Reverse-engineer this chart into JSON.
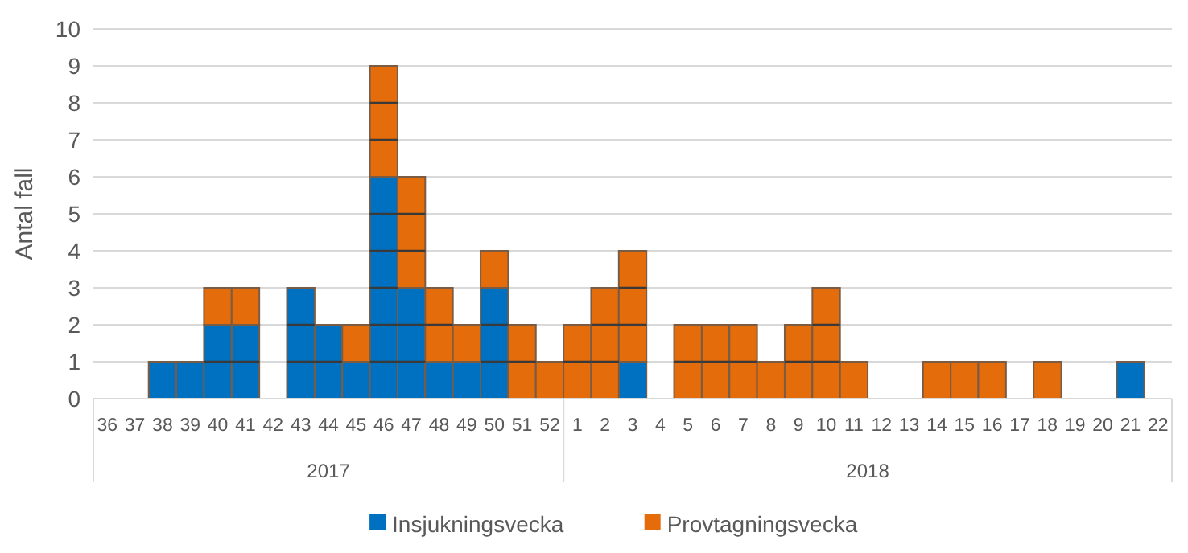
{
  "chart_data": {
    "type": "bar",
    "stacked": true,
    "ylabel": "Antal fall",
    "categories": [
      "36",
      "37",
      "38",
      "39",
      "40",
      "41",
      "42",
      "43",
      "44",
      "45",
      "46",
      "47",
      "48",
      "49",
      "50",
      "51",
      "52",
      "1",
      "2",
      "3",
      "4",
      "5",
      "6",
      "7",
      "8",
      "9",
      "10",
      "11",
      "12",
      "13",
      "14",
      "15",
      "16",
      "17",
      "18",
      "19",
      "20",
      "21",
      "22"
    ],
    "series": [
      {
        "name": "Insjukningsvecka",
        "color": "#0070c0",
        "values": [
          0,
          0,
          1,
          1,
          2,
          2,
          0,
          3,
          2,
          1,
          6,
          3,
          1,
          1,
          3,
          0,
          0,
          0,
          0,
          1,
          0,
          0,
          0,
          0,
          0,
          0,
          0,
          0,
          0,
          0,
          0,
          0,
          0,
          0,
          0,
          0,
          0,
          1,
          0
        ]
      },
      {
        "name": "Provtagningsvecka",
        "color": "#e46c0a",
        "values": [
          0,
          0,
          0,
          0,
          1,
          1,
          0,
          0,
          0,
          1,
          3,
          3,
          2,
          1,
          1,
          2,
          1,
          2,
          3,
          3,
          0,
          2,
          2,
          2,
          1,
          2,
          3,
          1,
          0,
          0,
          1,
          1,
          1,
          0,
          1,
          0,
          0,
          0,
          0
        ]
      }
    ],
    "ylim": [
      0,
      10
    ],
    "yticks": [
      0,
      1,
      2,
      3,
      4,
      5,
      6,
      7,
      8,
      9,
      10
    ],
    "grid": "y",
    "legend": "bottom",
    "annotations": [
      "2017",
      "2018"
    ]
  }
}
